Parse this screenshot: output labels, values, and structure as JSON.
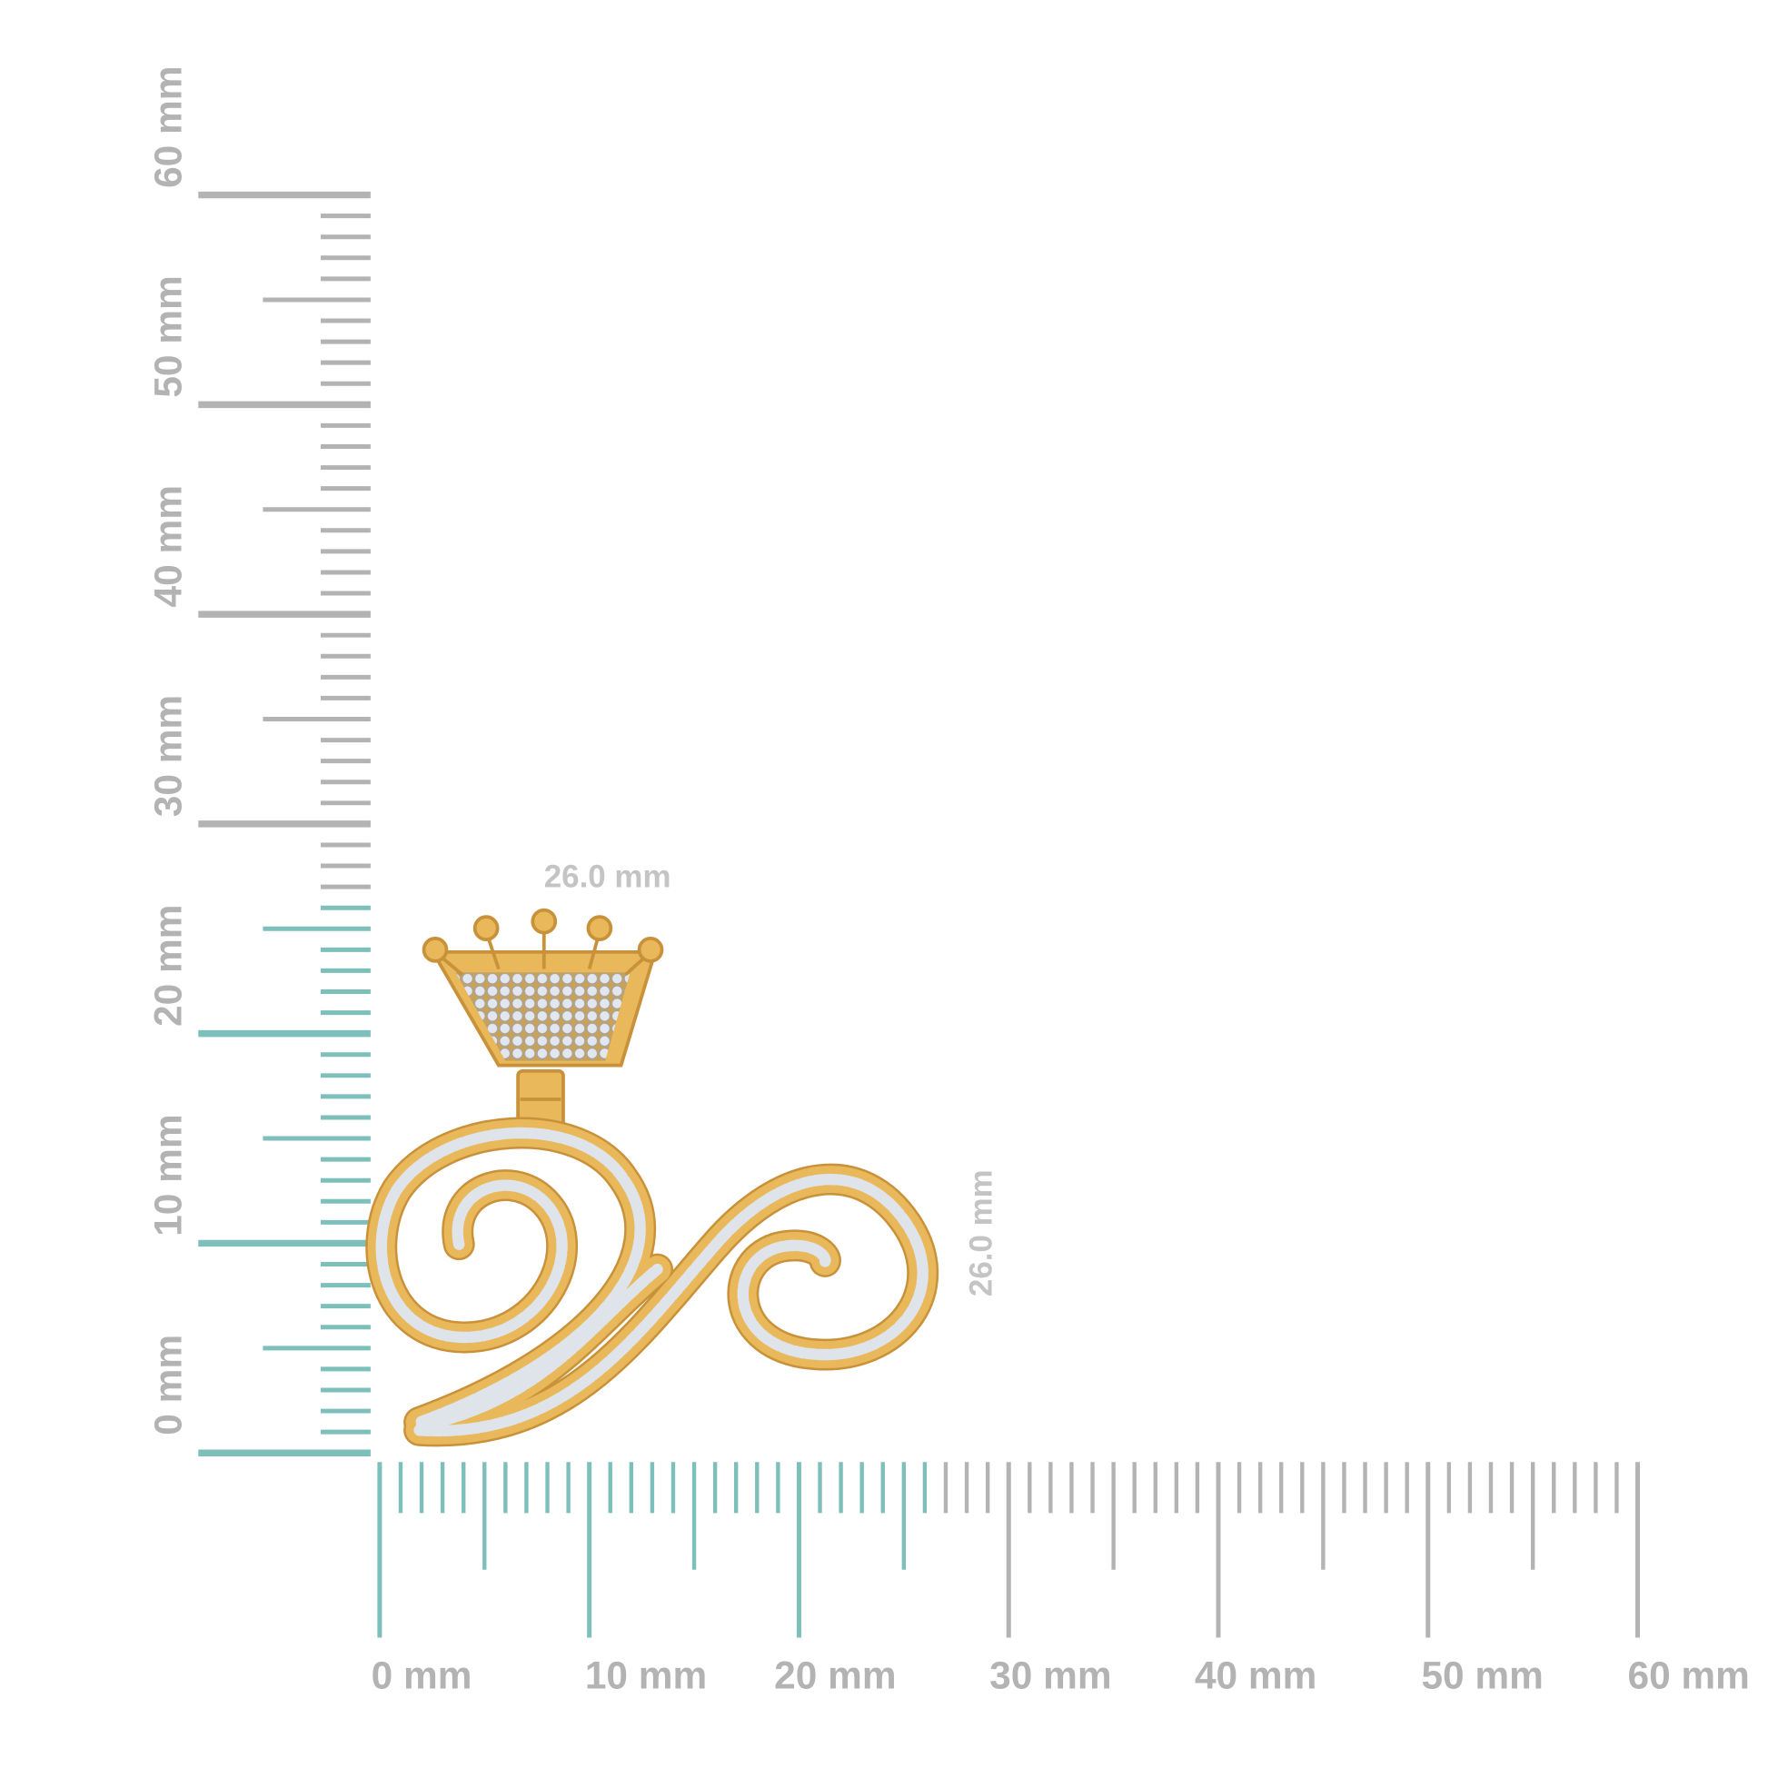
{
  "rulers": {
    "unit": "mm",
    "max_mm": 60,
    "highlight_mm": 26,
    "vertical_labels": [
      "0 mm",
      "10 mm",
      "20 mm",
      "30 mm",
      "40 mm",
      "50 mm",
      "60 mm"
    ],
    "horizontal_labels": [
      "0 mm",
      "10 mm",
      "20 mm",
      "30 mm",
      "40 mm",
      "50 mm",
      "60 mm"
    ]
  },
  "dimensions": {
    "width_label": "26.0 mm",
    "height_label": "26.0 mm"
  },
  "colors": {
    "highlight": "#7dbfbb",
    "ruler": "#b3b3b3",
    "gold": "#e8b85a",
    "gold_dark": "#c8913a",
    "diamond": "#dfe3ea"
  }
}
